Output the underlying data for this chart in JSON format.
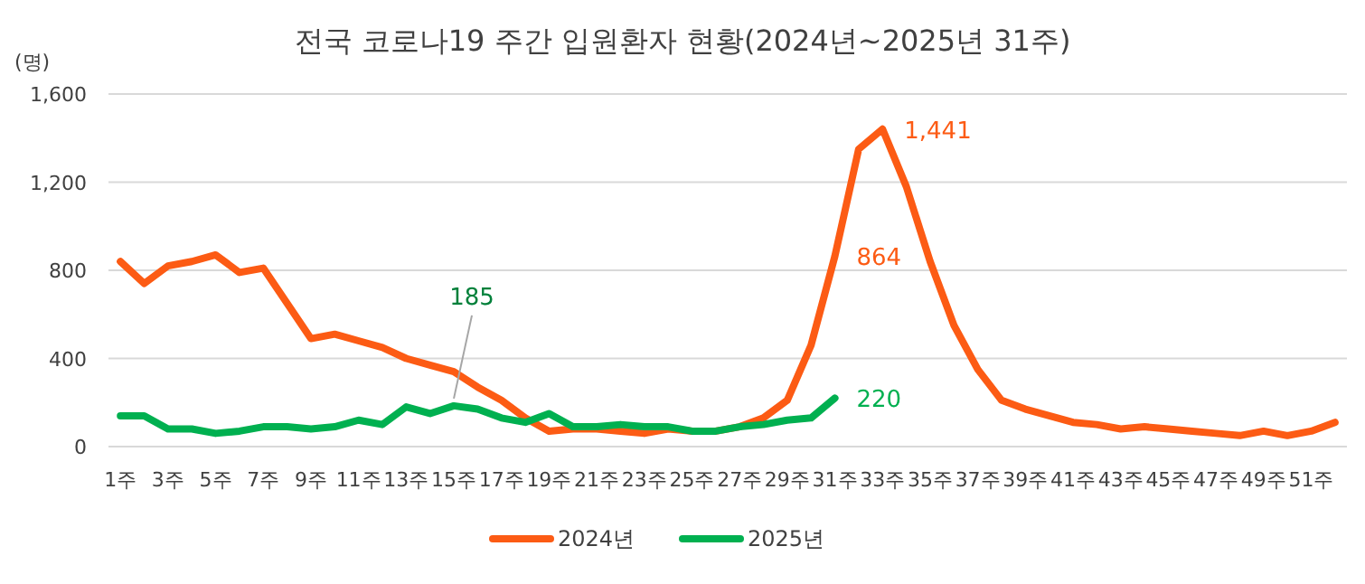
{
  "chart_data": {
    "type": "line",
    "title": "전국 코로나19 주간 입원환자 현황(2024년~2025년 31주)",
    "ylabel": "(명)",
    "categories": [
      "1주",
      null,
      "3주",
      null,
      "5주",
      null,
      "7주",
      null,
      "9주",
      null,
      "11주",
      null,
      "13주",
      null,
      "15주",
      null,
      "17주",
      null,
      "19주",
      null,
      "21주",
      null,
      "23주",
      null,
      "25주",
      null,
      "27주",
      null,
      "29주",
      null,
      "31주",
      null,
      "33주",
      null,
      "35주",
      null,
      "37주",
      null,
      "39주",
      null,
      "41주",
      null,
      "43주",
      null,
      "45주",
      null,
      "47주",
      null,
      "49주",
      null,
      "51주",
      null
    ],
    "series": [
      {
        "name": "2024년",
        "color": "#fc5b14",
        "values": [
          840,
          740,
          820,
          840,
          870,
          790,
          810,
          650,
          490,
          510,
          480,
          450,
          400,
          370,
          340,
          270,
          210,
          130,
          70,
          80,
          80,
          70,
          60,
          80,
          70,
          70,
          90,
          130,
          210,
          460,
          864,
          1350,
          1441,
          1180,
          840,
          550,
          350,
          210,
          170,
          140,
          110,
          100,
          80,
          90,
          80,
          70,
          60,
          50,
          70,
          50,
          70,
          110
        ],
        "value_labels": [
          null,
          null,
          null,
          null,
          null,
          null,
          null,
          null,
          null,
          null,
          null,
          null,
          null,
          null,
          null,
          null,
          null,
          null,
          null,
          null,
          null,
          null,
          null,
          null,
          null,
          null,
          null,
          null,
          null,
          null,
          "864",
          null,
          "1,441",
          null,
          null,
          null,
          null,
          null,
          null,
          null,
          null,
          null,
          null,
          null,
          null,
          null,
          null,
          null,
          null,
          null,
          null,
          null
        ]
      },
      {
        "name": "2025년",
        "color": "#00b050",
        "values": [
          140,
          140,
          80,
          80,
          60,
          70,
          90,
          90,
          80,
          90,
          120,
          100,
          180,
          150,
          185,
          170,
          130,
          110,
          150,
          90,
          90,
          100,
          90,
          90,
          70,
          70,
          90,
          100,
          120,
          130,
          220,
          null,
          null,
          null,
          null,
          null,
          null,
          null,
          null,
          null,
          null,
          null,
          null,
          null,
          null,
          null,
          null,
          null,
          null,
          null,
          null,
          null
        ],
        "value_labels": [
          null,
          null,
          null,
          null,
          null,
          null,
          null,
          null,
          null,
          null,
          null,
          null,
          null,
          null,
          "185",
          null,
          null,
          null,
          null,
          null,
          null,
          null,
          null,
          null,
          null,
          null,
          null,
          null,
          null,
          null,
          "220",
          null,
          null,
          null,
          null,
          null,
          null,
          null,
          null,
          null,
          null,
          null,
          null,
          null,
          null,
          null,
          null,
          null,
          null,
          null,
          null,
          null
        ]
      }
    ],
    "ylim": [
      0,
      1600
    ],
    "yticks": [
      0,
      400,
      800,
      {
        "value": 1200,
        "label": "1,200"
      },
      {
        "value": 1600,
        "label": "1,600"
      }
    ],
    "grid": "y",
    "legend": "bottom",
    "marker": "none",
    "line_style": "solid"
  }
}
